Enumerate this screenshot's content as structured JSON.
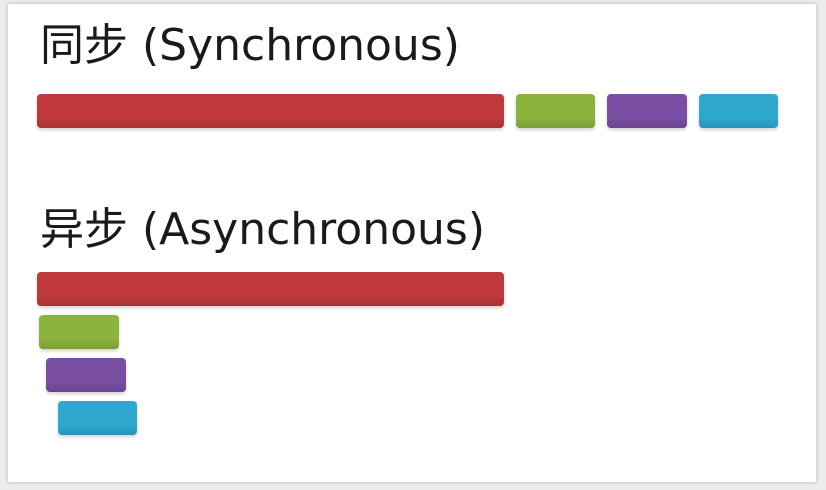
{
  "sync": {
    "title": "同步 (Synchronous)"
  },
  "async": {
    "title": "异步 (Asynchronous)"
  },
  "colors": {
    "red": "#c0393b",
    "green": "#8bb43c",
    "purple": "#7a4ea3",
    "blue": "#2ea8cf"
  },
  "diagram_data": {
    "task_durations": [
      10,
      1.7,
      1.7,
      1.7
    ],
    "task_colors": [
      "red",
      "green",
      "purple",
      "blue"
    ],
    "async_start_offsets": [
      0,
      0.05,
      0.2,
      0.45
    ]
  }
}
